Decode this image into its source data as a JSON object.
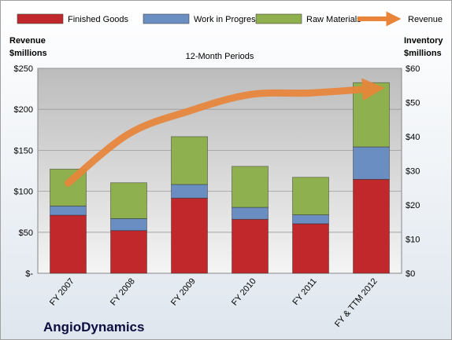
{
  "chart_data": {
    "type": "bar",
    "subtitle": "12-Month Periods",
    "company": "AngioDynamics",
    "left_axis_label": [
      "Revenue",
      "$millions"
    ],
    "right_axis_label": [
      "Inventory",
      "$millions"
    ],
    "categories": [
      "FY 2007",
      "FY 2008",
      "FY 2009",
      "FY 2010",
      "FY 2011",
      "FY & TTM 2012"
    ],
    "stacked_series": [
      {
        "name": "Finished Goods",
        "color": "#c0282c",
        "values": [
          17.0,
          12.5,
          22.0,
          15.8,
          14.5,
          27.5
        ]
      },
      {
        "name": "Work in Progress",
        "color": "#6a8ec2",
        "values": [
          2.7,
          3.5,
          4.0,
          3.5,
          2.6,
          9.5
        ]
      },
      {
        "name": "Raw Materials",
        "color": "#8fb04e",
        "values": [
          10.8,
          10.5,
          14.0,
          12.0,
          11.0,
          18.8
        ]
      }
    ],
    "line_series": {
      "name": "Revenue",
      "color": "#e8853a",
      "values": [
        110,
        170,
        198,
        218,
        220,
        225
      ]
    },
    "left_ylim": [
      0,
      250
    ],
    "left_ticks": [
      "$-",
      "$50",
      "$100",
      "$150",
      "$200",
      "$250"
    ],
    "right_ylim": [
      0,
      60
    ],
    "right_ticks": [
      "$0",
      "$10",
      "$20",
      "$30",
      "$40",
      "$50",
      "$60"
    ],
    "legend_position": "top",
    "grid": true
  }
}
